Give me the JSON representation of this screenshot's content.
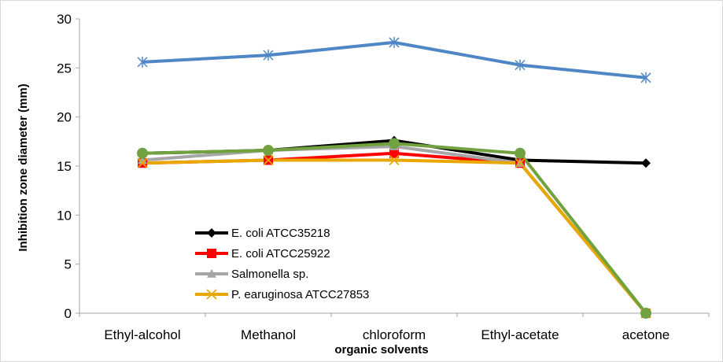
{
  "chart_data": {
    "type": "line",
    "title": "",
    "xlabel": "organic solvents",
    "ylabel": "Inhibition zone diameter (mm)",
    "categories": [
      "Ethyl-alcohol",
      "Methanol",
      "chloroform",
      "Ethyl-acetate",
      "acetone"
    ],
    "ylim": [
      0,
      30
    ],
    "yticks": [
      0,
      5,
      10,
      15,
      20,
      25,
      30
    ],
    "grid": false,
    "legend_position": "lower-left",
    "series": [
      {
        "name": "E. coli ATCC35218",
        "color": "#000000",
        "marker": "diamond",
        "values": [
          16.3,
          16.6,
          17.6,
          15.6,
          15.3
        ]
      },
      {
        "name": "E. coli ATCC25922",
        "color": "#ff0000",
        "marker": "square",
        "values": [
          15.3,
          15.6,
          16.3,
          15.3,
          0
        ]
      },
      {
        "name": "Salmonella sp.",
        "color": "#a6a6a6",
        "marker": "triangle",
        "values": [
          15.6,
          16.6,
          17.0,
          15.3,
          0
        ]
      },
      {
        "name": "P. earuginosa ATCC27853",
        "color": "#e8a800",
        "marker": "x",
        "values": [
          15.3,
          15.6,
          15.6,
          15.3,
          0
        ]
      },
      {
        "name": "",
        "color": "#4f86c6",
        "marker": "star",
        "values": [
          25.6,
          26.3,
          27.6,
          25.3,
          24.0
        ]
      },
      {
        "name": "",
        "color": "#70a33f",
        "marker": "circle",
        "values": [
          16.3,
          16.6,
          17.3,
          16.3,
          0
        ]
      }
    ]
  }
}
